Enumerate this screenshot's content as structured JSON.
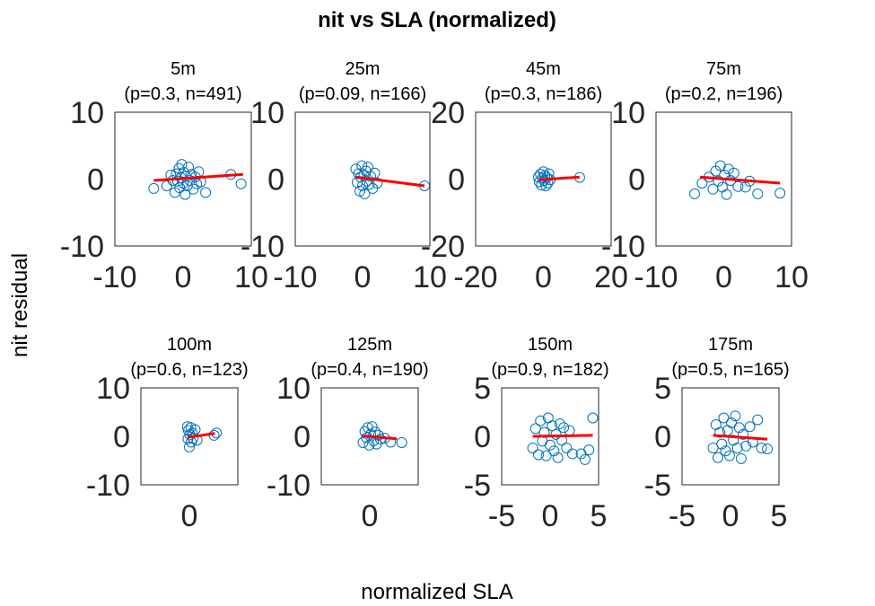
{
  "chart_data": {
    "type": "scatter",
    "title": "nit vs SLA (normalized)",
    "xlabel": "normalized SLA",
    "ylabel": "nit residual",
    "grid": false,
    "colors": {
      "points": "#0072BD",
      "fit": "#FF0000"
    },
    "panels": [
      {
        "label": "5m",
        "stats": "(p=0.3, n=491)",
        "xlim": [
          -10,
          10
        ],
        "ylim": [
          -10,
          10
        ],
        "xticks": [
          "-10",
          "0",
          "10"
        ],
        "yticks": [
          "10",
          "0",
          "-10"
        ],
        "points": [
          [
            -4.3,
            -1.4
          ],
          [
            -2.4,
            -1.0
          ],
          [
            -1.8,
            0.6
          ],
          [
            -1.5,
            -0.2
          ],
          [
            -1.2,
            -2.0
          ],
          [
            -1.0,
            0.8
          ],
          [
            -0.8,
            -0.3
          ],
          [
            -0.6,
            1.6
          ],
          [
            -0.5,
            -1.3
          ],
          [
            -0.3,
            0.2
          ],
          [
            -0.2,
            2.2
          ],
          [
            0.0,
            -0.6
          ],
          [
            0.1,
            1.0
          ],
          [
            0.3,
            -2.3
          ],
          [
            0.4,
            0.4
          ],
          [
            0.6,
            -1.0
          ],
          [
            0.8,
            1.8
          ],
          [
            1.0,
            -0.2
          ],
          [
            1.2,
            0.7
          ],
          [
            1.5,
            -1.5
          ],
          [
            1.8,
            0.3
          ],
          [
            2.0,
            -0.7
          ],
          [
            2.3,
            1.1
          ],
          [
            2.6,
            -0.4
          ],
          [
            3.3,
            -2.0
          ],
          [
            7.0,
            0.7
          ],
          [
            8.5,
            -0.7
          ]
        ],
        "fit": [
          [
            -4.3,
            -0.2
          ],
          [
            8.8,
            0.7
          ]
        ]
      },
      {
        "label": "25m",
        "stats": "(p=0.09, n=166)",
        "xlim": [
          -10,
          10
        ],
        "ylim": [
          -10,
          10
        ],
        "xticks": [
          "-10",
          "0",
          "10"
        ],
        "yticks": [
          "10",
          "0",
          "-10"
        ],
        "points": [
          [
            -1.0,
            1.5
          ],
          [
            -0.8,
            -0.5
          ],
          [
            -0.6,
            0.8
          ],
          [
            -0.4,
            -1.8
          ],
          [
            -0.3,
            0.3
          ],
          [
            -0.1,
            2.0
          ],
          [
            0.0,
            -1.0
          ],
          [
            0.2,
            0.6
          ],
          [
            0.3,
            -2.2
          ],
          [
            0.5,
            1.2
          ],
          [
            0.6,
            -0.3
          ],
          [
            0.8,
            1.8
          ],
          [
            1.0,
            -0.8
          ],
          [
            1.2,
            0.4
          ],
          [
            1.5,
            -1.4
          ],
          [
            1.8,
            0.9
          ],
          [
            2.2,
            -0.6
          ],
          [
            9.2,
            -1.0
          ]
        ],
        "fit": [
          [
            -1.0,
            0.3
          ],
          [
            9.2,
            -1.0
          ]
        ]
      },
      {
        "label": "45m",
        "stats": "(p=0.3, n=186)",
        "xlim": [
          -20,
          20
        ],
        "ylim": [
          -20,
          20
        ],
        "xticks": [
          "-20",
          "0",
          "20"
        ],
        "yticks": [
          "20",
          "0",
          "-20"
        ],
        "points": [
          [
            -1.5,
            0.6
          ],
          [
            -1.2,
            -0.8
          ],
          [
            -0.9,
            1.5
          ],
          [
            -0.6,
            -1.8
          ],
          [
            -0.3,
            0.3
          ],
          [
            0.0,
            2.2
          ],
          [
            0.2,
            -0.4
          ],
          [
            0.4,
            1.0
          ],
          [
            0.7,
            -2.0
          ],
          [
            1.0,
            0.5
          ],
          [
            1.3,
            -1.2
          ],
          [
            1.6,
            1.6
          ],
          [
            2.0,
            -0.2
          ],
          [
            10.7,
            0.5
          ]
        ],
        "fit": [
          [
            -1.2,
            -0.2
          ],
          [
            10.7,
            0.6
          ]
        ]
      },
      {
        "label": "75m",
        "stats": "(p=0.2, n=196)",
        "xlim": [
          -10,
          10
        ],
        "ylim": [
          -10,
          10
        ],
        "xticks": [
          "-10",
          "0",
          "10"
        ],
        "yticks": [
          "10",
          "0",
          "-10"
        ],
        "points": [
          [
            -4.3,
            -2.2
          ],
          [
            -3.2,
            -0.6
          ],
          [
            -2.2,
            0.3
          ],
          [
            -1.6,
            -1.5
          ],
          [
            -1.2,
            1.2
          ],
          [
            -0.8,
            -0.3
          ],
          [
            -0.5,
            2.0
          ],
          [
            -0.2,
            -1.2
          ],
          [
            0.1,
            0.6
          ],
          [
            0.4,
            -2.3
          ],
          [
            0.7,
            1.5
          ],
          [
            1.0,
            -0.2
          ],
          [
            1.5,
            0.9
          ],
          [
            2.1,
            -1.1
          ],
          [
            3.2,
            -1.2
          ],
          [
            3.8,
            -0.3
          ],
          [
            5.0,
            -2.2
          ],
          [
            8.3,
            -2.1
          ]
        ],
        "fit": [
          [
            -3.5,
            0.3
          ],
          [
            8.3,
            -0.6
          ]
        ]
      },
      {
        "label": "100m",
        "stats": "(p=0.6, n=123)",
        "xlim": [
          -10,
          10
        ],
        "ylim": [
          -10,
          10
        ],
        "xticks": [
          "0"
        ],
        "yticks": [
          "10",
          "0",
          "-10"
        ],
        "points": [
          [
            -0.4,
            2.0
          ],
          [
            -0.3,
            -0.5
          ],
          [
            -0.2,
            1.2
          ],
          [
            0.0,
            -2.2
          ],
          [
            0.1,
            0.3
          ],
          [
            0.3,
            1.8
          ],
          [
            0.4,
            -1.2
          ],
          [
            0.6,
            0.7
          ],
          [
            0.8,
            -0.4
          ],
          [
            1.2,
            1.4
          ],
          [
            1.6,
            -0.8
          ],
          [
            5.1,
            0.2
          ],
          [
            5.6,
            0.7
          ]
        ],
        "fit": [
          [
            -0.4,
            -0.2
          ],
          [
            5.3,
            0.6
          ]
        ]
      },
      {
        "label": "125m",
        "stats": "(p=0.4, n=190)",
        "xlim": [
          -10,
          10
        ],
        "ylim": [
          -10,
          10
        ],
        "xticks": [
          "0"
        ],
        "yticks": [
          "10",
          "0",
          "-10"
        ],
        "points": [
          [
            -1.4,
            -1.3
          ],
          [
            -1.0,
            1.0
          ],
          [
            -0.7,
            -0.3
          ],
          [
            -0.4,
            1.8
          ],
          [
            -0.1,
            -1.8
          ],
          [
            0.2,
            0.4
          ],
          [
            0.5,
            2.0
          ],
          [
            0.8,
            -0.9
          ],
          [
            1.1,
            0.9
          ],
          [
            1.4,
            -1.6
          ],
          [
            1.8,
            0.2
          ],
          [
            2.2,
            -0.6
          ],
          [
            3.1,
            -0.4
          ],
          [
            4.3,
            -1.2
          ],
          [
            6.6,
            -1.3
          ]
        ],
        "fit": [
          [
            -1.5,
            0.1
          ],
          [
            5.6,
            -0.5
          ]
        ]
      },
      {
        "label": "150m",
        "stats": "(p=0.9, n=182)",
        "xlim": [
          -5,
          5
        ],
        "ylim": [
          -5,
          5
        ],
        "xticks": [
          "-5",
          "0",
          "5"
        ],
        "yticks": [
          "5",
          "0",
          "-5"
        ],
        "points": [
          [
            -1.8,
            -1.2
          ],
          [
            -1.5,
            0.8
          ],
          [
            -1.2,
            -1.9
          ],
          [
            -1.0,
            1.6
          ],
          [
            -0.8,
            -0.5
          ],
          [
            -0.6,
            0.4
          ],
          [
            -0.4,
            -2.0
          ],
          [
            -0.2,
            1.9
          ],
          [
            0.0,
            -0.9
          ],
          [
            0.2,
            1.1
          ],
          [
            0.4,
            -1.5
          ],
          [
            0.6,
            0.2
          ],
          [
            0.8,
            -2.2
          ],
          [
            1.0,
            1.3
          ],
          [
            1.2,
            -0.4
          ],
          [
            1.4,
            0.9
          ],
          [
            1.7,
            -1.2
          ],
          [
            2.0,
            0.6
          ],
          [
            2.3,
            -1.8
          ],
          [
            3.2,
            -1.8
          ],
          [
            3.6,
            -2.4
          ],
          [
            4.0,
            -1.4
          ],
          [
            4.4,
            1.9
          ]
        ],
        "fit": [
          [
            -1.8,
            0.0
          ],
          [
            4.4,
            0.1
          ]
        ]
      },
      {
        "label": "175m",
        "stats": "(p=0.5, n=165)",
        "xlim": [
          -5,
          5
        ],
        "ylim": [
          -5,
          5
        ],
        "xticks": [
          "-5",
          "0",
          "5"
        ],
        "yticks": [
          "5",
          "0",
          "-5"
        ],
        "points": [
          [
            -1.8,
            -1.2
          ],
          [
            -1.5,
            1.2
          ],
          [
            -1.3,
            -2.2
          ],
          [
            -1.1,
            0.4
          ],
          [
            -0.9,
            -0.8
          ],
          [
            -0.7,
            1.9
          ],
          [
            -0.5,
            -1.5
          ],
          [
            -0.3,
            0.6
          ],
          [
            -0.1,
            -2.0
          ],
          [
            0.1,
            1.4
          ],
          [
            0.3,
            -0.4
          ],
          [
            0.5,
            2.1
          ],
          [
            0.7,
            -1.2
          ],
          [
            0.9,
            0.9
          ],
          [
            1.1,
            -2.3
          ],
          [
            1.3,
            0.2
          ],
          [
            1.6,
            -1.0
          ],
          [
            2.0,
            1.0
          ],
          [
            2.3,
            -0.6
          ],
          [
            2.8,
            1.7
          ],
          [
            3.2,
            -1.2
          ],
          [
            3.8,
            -1.3
          ]
        ],
        "fit": [
          [
            -1.8,
            0.1
          ],
          [
            3.8,
            -0.3
          ]
        ]
      }
    ]
  }
}
